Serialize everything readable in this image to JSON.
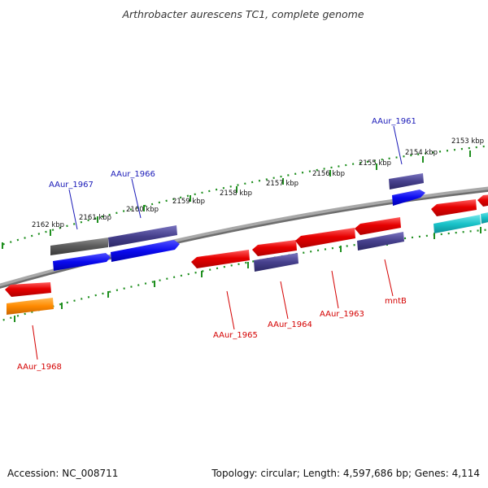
{
  "title": "Arthrobacter aurescens TC1, complete genome",
  "footer": {
    "accession": "Accession: NC_008711",
    "topology": "Topology: circular; Length: 4,597,686 bp; Genes: 4,114"
  },
  "colors": {
    "backbone": "#808080",
    "ticks": "#1f8f1f",
    "forward_label": "#1a1ab8",
    "reverse_label": "#d40000",
    "red_gene": "#e60000",
    "navy_gene": "#46408c",
    "blue_gene": "#0a0aee",
    "grey_gene": "#5a5a5a",
    "orange_gene": "#ff8a00",
    "cyan_gene": "#19c2c8"
  },
  "scale_labels": [
    "2162 kbp",
    "2161 kbp",
    "2160 kbp",
    "2159 kbp",
    "2158 kbp",
    "2157 kbp",
    "2156 kbp",
    "2155 kbp",
    "2154 kbp",
    "2153 kbp"
  ],
  "gene_labels": {
    "AAur_1967": "AAur_1967",
    "AAur_1966": "AAur_1966",
    "AAur_1961": "AAur_1961",
    "AAur_1965": "AAur_1965",
    "AAur_1964": "AAur_1964",
    "AAur_1963": "AAur_1963",
    "mntB": "mntB",
    "AAur_1968": "AAur_1968"
  }
}
